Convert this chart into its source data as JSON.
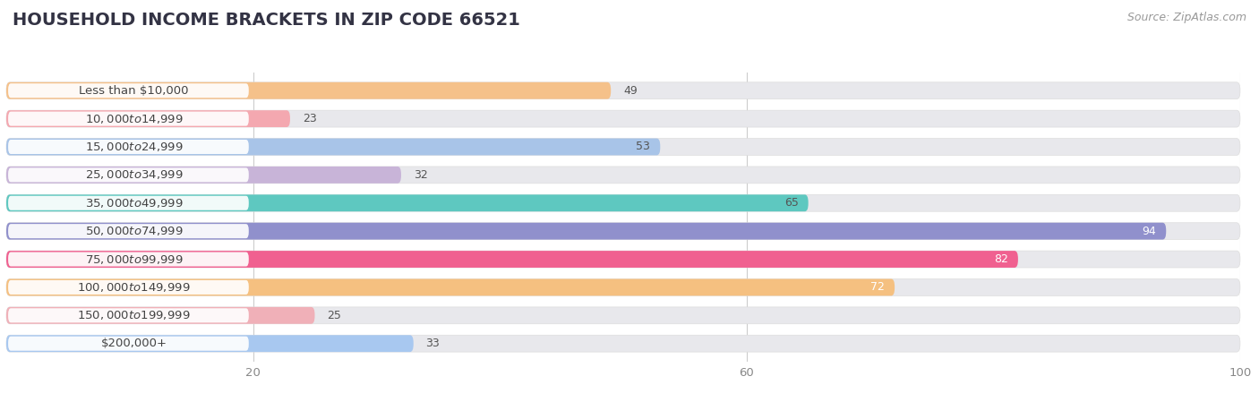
{
  "title": "HOUSEHOLD INCOME BRACKETS IN ZIP CODE 66521",
  "source": "Source: ZipAtlas.com",
  "categories": [
    "Less than $10,000",
    "$10,000 to $14,999",
    "$15,000 to $24,999",
    "$25,000 to $34,999",
    "$35,000 to $49,999",
    "$50,000 to $74,999",
    "$75,000 to $99,999",
    "$100,000 to $149,999",
    "$150,000 to $199,999",
    "$200,000+"
  ],
  "values": [
    49,
    23,
    53,
    32,
    65,
    94,
    82,
    72,
    25,
    33
  ],
  "bar_colors": [
    "#f5c18a",
    "#f4a8b0",
    "#a8c4e8",
    "#c8b4d8",
    "#5ec8c0",
    "#9090cc",
    "#f06090",
    "#f5c080",
    "#f0b0b8",
    "#a8c8f0"
  ],
  "label_colors": [
    "#555555",
    "#555555",
    "#555555",
    "#555555",
    "#555555",
    "#ffffff",
    "#ffffff",
    "#ffffff",
    "#555555",
    "#555555"
  ],
  "xlim": [
    0,
    100
  ],
  "xticks": [
    20,
    60,
    100
  ],
  "background_color": "#ffffff",
  "bar_background_color": "#e8e8ec",
  "title_fontsize": 14,
  "source_fontsize": 9,
  "value_fontsize": 9,
  "category_fontsize": 9.5
}
